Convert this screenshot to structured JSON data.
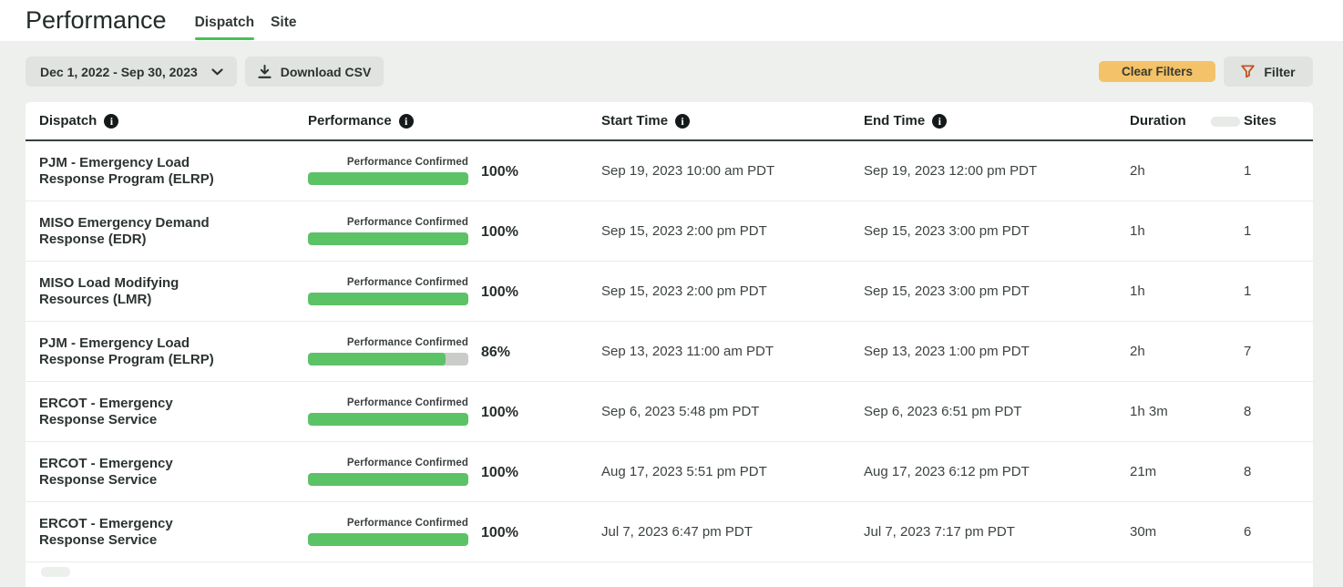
{
  "page": {
    "title": "Performance"
  },
  "tabs": [
    {
      "label": "Dispatch",
      "active": true
    },
    {
      "label": "Site",
      "active": false
    }
  ],
  "toolbar": {
    "date_range": "Dec 1, 2022 - Sep 30, 2023",
    "download_csv_label": "Download CSV",
    "clear_filters_label": "Clear Filters",
    "filter_label": "Filter"
  },
  "colors": {
    "accent_green": "#46c156",
    "bar_green": "#5cc266",
    "bar_gray": "#c9ccc9",
    "clear_filters_bg": "#f4c269",
    "filter_icon_orange": "#c2511f",
    "page_bg": "#eef0ed"
  },
  "table": {
    "columns": [
      {
        "label": "Dispatch",
        "info": true
      },
      {
        "label": "Performance",
        "info": true
      },
      {
        "label": "Start Time",
        "info": true
      },
      {
        "label": "End Time",
        "info": true
      },
      {
        "label": "Duration",
        "info": false
      },
      {
        "label": "Sites",
        "info": false
      }
    ],
    "rows": [
      {
        "dispatch": "PJM - Emergency Load Response Program (ELRP)",
        "performance_label": "Performance Confirmed",
        "performance_pct": 100,
        "start": "Sep 19, 2023 10:00 am PDT",
        "end": "Sep 19, 2023 12:00 pm PDT",
        "duration": "2h",
        "sites": "1"
      },
      {
        "dispatch": "MISO Emergency Demand Response (EDR)",
        "performance_label": "Performance Confirmed",
        "performance_pct": 100,
        "start": "Sep 15, 2023 2:00 pm PDT",
        "end": "Sep 15, 2023 3:00 pm PDT",
        "duration": "1h",
        "sites": "1"
      },
      {
        "dispatch": "MISO Load Modifying Resources (LMR)",
        "performance_label": "Performance Confirmed",
        "performance_pct": 100,
        "start": "Sep 15, 2023 2:00 pm PDT",
        "end": "Sep 15, 2023 3:00 pm PDT",
        "duration": "1h",
        "sites": "1"
      },
      {
        "dispatch": "PJM - Emergency Load Response Program (ELRP)",
        "performance_label": "Performance Confirmed",
        "performance_pct": 86,
        "start": "Sep 13, 2023 11:00 am PDT",
        "end": "Sep 13, 2023 1:00 pm PDT",
        "duration": "2h",
        "sites": "7"
      },
      {
        "dispatch": "ERCOT - Emergency Response Service",
        "performance_label": "Performance Confirmed",
        "performance_pct": 100,
        "start": "Sep 6, 2023 5:48 pm PDT",
        "end": "Sep 6, 2023 6:51 pm PDT",
        "duration": "1h 3m",
        "sites": "8"
      },
      {
        "dispatch": "ERCOT - Emergency Response Service",
        "performance_label": "Performance Confirmed",
        "performance_pct": 100,
        "start": "Aug 17, 2023 5:51 pm PDT",
        "end": "Aug 17, 2023 6:12 pm PDT",
        "duration": "21m",
        "sites": "8"
      },
      {
        "dispatch": "ERCOT - Emergency Response Service",
        "performance_label": "Performance Confirmed",
        "performance_pct": 100,
        "start": "Jul 7, 2023 6:47 pm PDT",
        "end": "Jul 7, 2023 7:17 pm PDT",
        "duration": "30m",
        "sites": "6"
      }
    ]
  }
}
